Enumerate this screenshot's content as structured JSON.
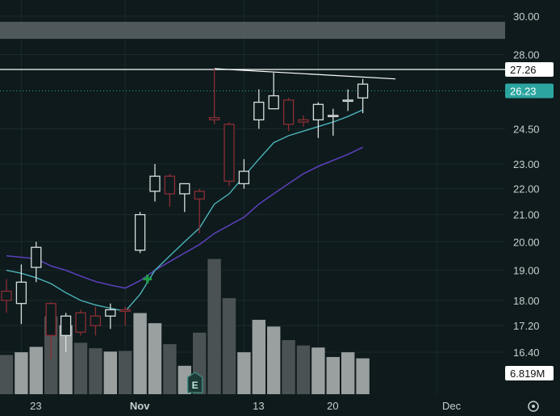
{
  "chart_data": {
    "type": "candlestick",
    "title": "",
    "ylim": [
      15.6,
      30.6
    ],
    "scale": "log",
    "y_ticks": [
      "30.00",
      "28.00",
      "24.50",
      "23.00",
      "22.00",
      "21.00",
      "20.00",
      "19.00",
      "18.00",
      "17.20",
      "16.40"
    ],
    "x_ticks": [
      {
        "label": "23",
        "index": 1,
        "bold": false
      },
      {
        "label": "Nov",
        "index": 8,
        "bold": true
      },
      {
        "label": "13",
        "index": 16,
        "bold": false
      },
      {
        "label": "20",
        "index": 21,
        "bold": false
      },
      {
        "label": "Dec",
        "index": 29,
        "bold": false
      }
    ],
    "candles": [
      {
        "o": 18.3,
        "h": 18.7,
        "l": 17.6,
        "c": 18.0
      },
      {
        "o": 17.9,
        "h": 19.2,
        "l": 17.25,
        "c": 18.6
      },
      {
        "o": 19.1,
        "h": 20.0,
        "l": 18.6,
        "c": 19.8
      },
      {
        "o": 17.9,
        "h": 17.95,
        "l": 16.2,
        "c": 16.9
      },
      {
        "o": 16.9,
        "h": 17.6,
        "l": 16.4,
        "c": 17.5
      },
      {
        "o": 17.6,
        "h": 17.7,
        "l": 16.9,
        "c": 17.0
      },
      {
        "o": 17.5,
        "h": 17.8,
        "l": 16.9,
        "c": 17.2
      },
      {
        "o": 17.5,
        "h": 17.9,
        "l": 17.1,
        "c": 17.7
      },
      {
        "o": 17.7,
        "h": 17.8,
        "l": 17.2,
        "c": 17.65
      },
      {
        "o": 19.7,
        "h": 21.1,
        "l": 19.6,
        "c": 21.0
      },
      {
        "o": 21.9,
        "h": 23.0,
        "l": 21.5,
        "c": 22.5
      },
      {
        "o": 22.5,
        "h": 22.6,
        "l": 21.3,
        "c": 21.8
      },
      {
        "o": 21.8,
        "h": 22.2,
        "l": 21.1,
        "c": 22.2
      },
      {
        "o": 21.9,
        "h": 22.0,
        "l": 20.3,
        "c": 21.6
      },
      {
        "o": 25.0,
        "h": 27.3,
        "l": 24.7,
        "c": 24.9
      },
      {
        "o": 24.7,
        "h": 24.8,
        "l": 22.1,
        "c": 22.3
      },
      {
        "o": 22.2,
        "h": 23.2,
        "l": 22.0,
        "c": 22.7
      },
      {
        "o": 24.9,
        "h": 26.3,
        "l": 24.5,
        "c": 25.7
      },
      {
        "o": 25.4,
        "h": 27.1,
        "l": 25.4,
        "c": 26.0
      },
      {
        "o": 25.8,
        "h": 25.9,
        "l": 24.4,
        "c": 24.7
      },
      {
        "o": 24.9,
        "h": 25.1,
        "l": 24.6,
        "c": 24.8
      },
      {
        "o": 24.9,
        "h": 25.7,
        "l": 24.1,
        "c": 25.6
      },
      {
        "o": 25.1,
        "h": 25.4,
        "l": 24.2,
        "c": 25.1
      },
      {
        "o": 25.8,
        "h": 26.3,
        "l": 25.3,
        "c": 25.8
      },
      {
        "o": 25.9,
        "h": 26.8,
        "l": 25.2,
        "c": 26.55
      }
    ],
    "volume": [
      0.58,
      0.62,
      0.7,
      1.15,
      1.02,
      0.76,
      0.68,
      0.63,
      0.64,
      1.2,
      1.05,
      0.74,
      0.42,
      0.91,
      2.0,
      1.42,
      0.62,
      1.1,
      1.0,
      0.8,
      0.72,
      0.69,
      0.55,
      0.62,
      0.53
    ],
    "volume_max": 2.15,
    "sma_fast": [
      [
        0,
        19.0
      ],
      [
        1,
        18.9
      ],
      [
        2,
        18.75
      ],
      [
        3,
        18.55
      ],
      [
        4,
        18.25
      ],
      [
        5,
        18.0
      ],
      [
        6,
        17.85
      ],
      [
        7,
        17.75
      ],
      [
        8,
        17.65
      ],
      [
        9,
        18.2
      ],
      [
        10,
        19.0
      ],
      [
        11,
        19.5
      ],
      [
        12,
        20.0
      ],
      [
        13,
        20.5
      ],
      [
        14,
        21.4
      ],
      [
        15,
        21.8
      ],
      [
        16,
        22.5
      ],
      [
        17,
        23.2
      ],
      [
        18,
        23.9
      ],
      [
        19,
        24.2
      ],
      [
        20,
        24.4
      ],
      [
        21,
        24.6
      ],
      [
        22,
        24.8
      ],
      [
        23,
        25.05
      ],
      [
        24,
        25.35
      ]
    ],
    "sma_slow": [
      [
        0,
        19.5
      ],
      [
        1,
        19.45
      ],
      [
        2,
        19.4
      ],
      [
        3,
        19.15
      ],
      [
        4,
        19.0
      ],
      [
        5,
        18.8
      ],
      [
        6,
        18.62
      ],
      [
        7,
        18.5
      ],
      [
        8,
        18.4
      ],
      [
        9,
        18.65
      ],
      [
        10,
        19.0
      ],
      [
        11,
        19.3
      ],
      [
        12,
        19.6
      ],
      [
        13,
        19.9
      ],
      [
        14,
        20.3
      ],
      [
        15,
        20.6
      ],
      [
        16,
        20.9
      ],
      [
        17,
        21.4
      ],
      [
        18,
        21.8
      ],
      [
        19,
        22.2
      ],
      [
        20,
        22.6
      ],
      [
        21,
        22.9
      ],
      [
        22,
        23.15
      ],
      [
        23,
        23.4
      ],
      [
        24,
        23.7
      ]
    ],
    "trendline": [
      [
        14,
        27.3
      ],
      [
        26.2,
        26.8
      ]
    ],
    "hline": 27.26,
    "zone": [
      28.8,
      29.7
    ],
    "price_labels": {
      "hline": "27.26",
      "last": "26.23",
      "volume": "6.819M"
    },
    "last_price": 26.23,
    "markers": [
      {
        "type": "upgrade",
        "symbol": "✚",
        "index": 9.5,
        "price": 18.7
      },
      {
        "type": "earnings",
        "symbol": "E",
        "index": 12.7
      }
    ],
    "colors": {
      "up": "#d8dede",
      "down": "#8b2e35",
      "sma_fast": "#4bb3b8",
      "sma_slow": "#5a3fb5",
      "hline": "#ffffff",
      "last_price": "#2ca5a0",
      "volume_bar": "#7e8687",
      "volume_bar_dark": "#4a5253",
      "volume_label_bg": "#ffffff",
      "marker_green": "#1f9b45",
      "earnings": "#3e8c7e"
    }
  }
}
